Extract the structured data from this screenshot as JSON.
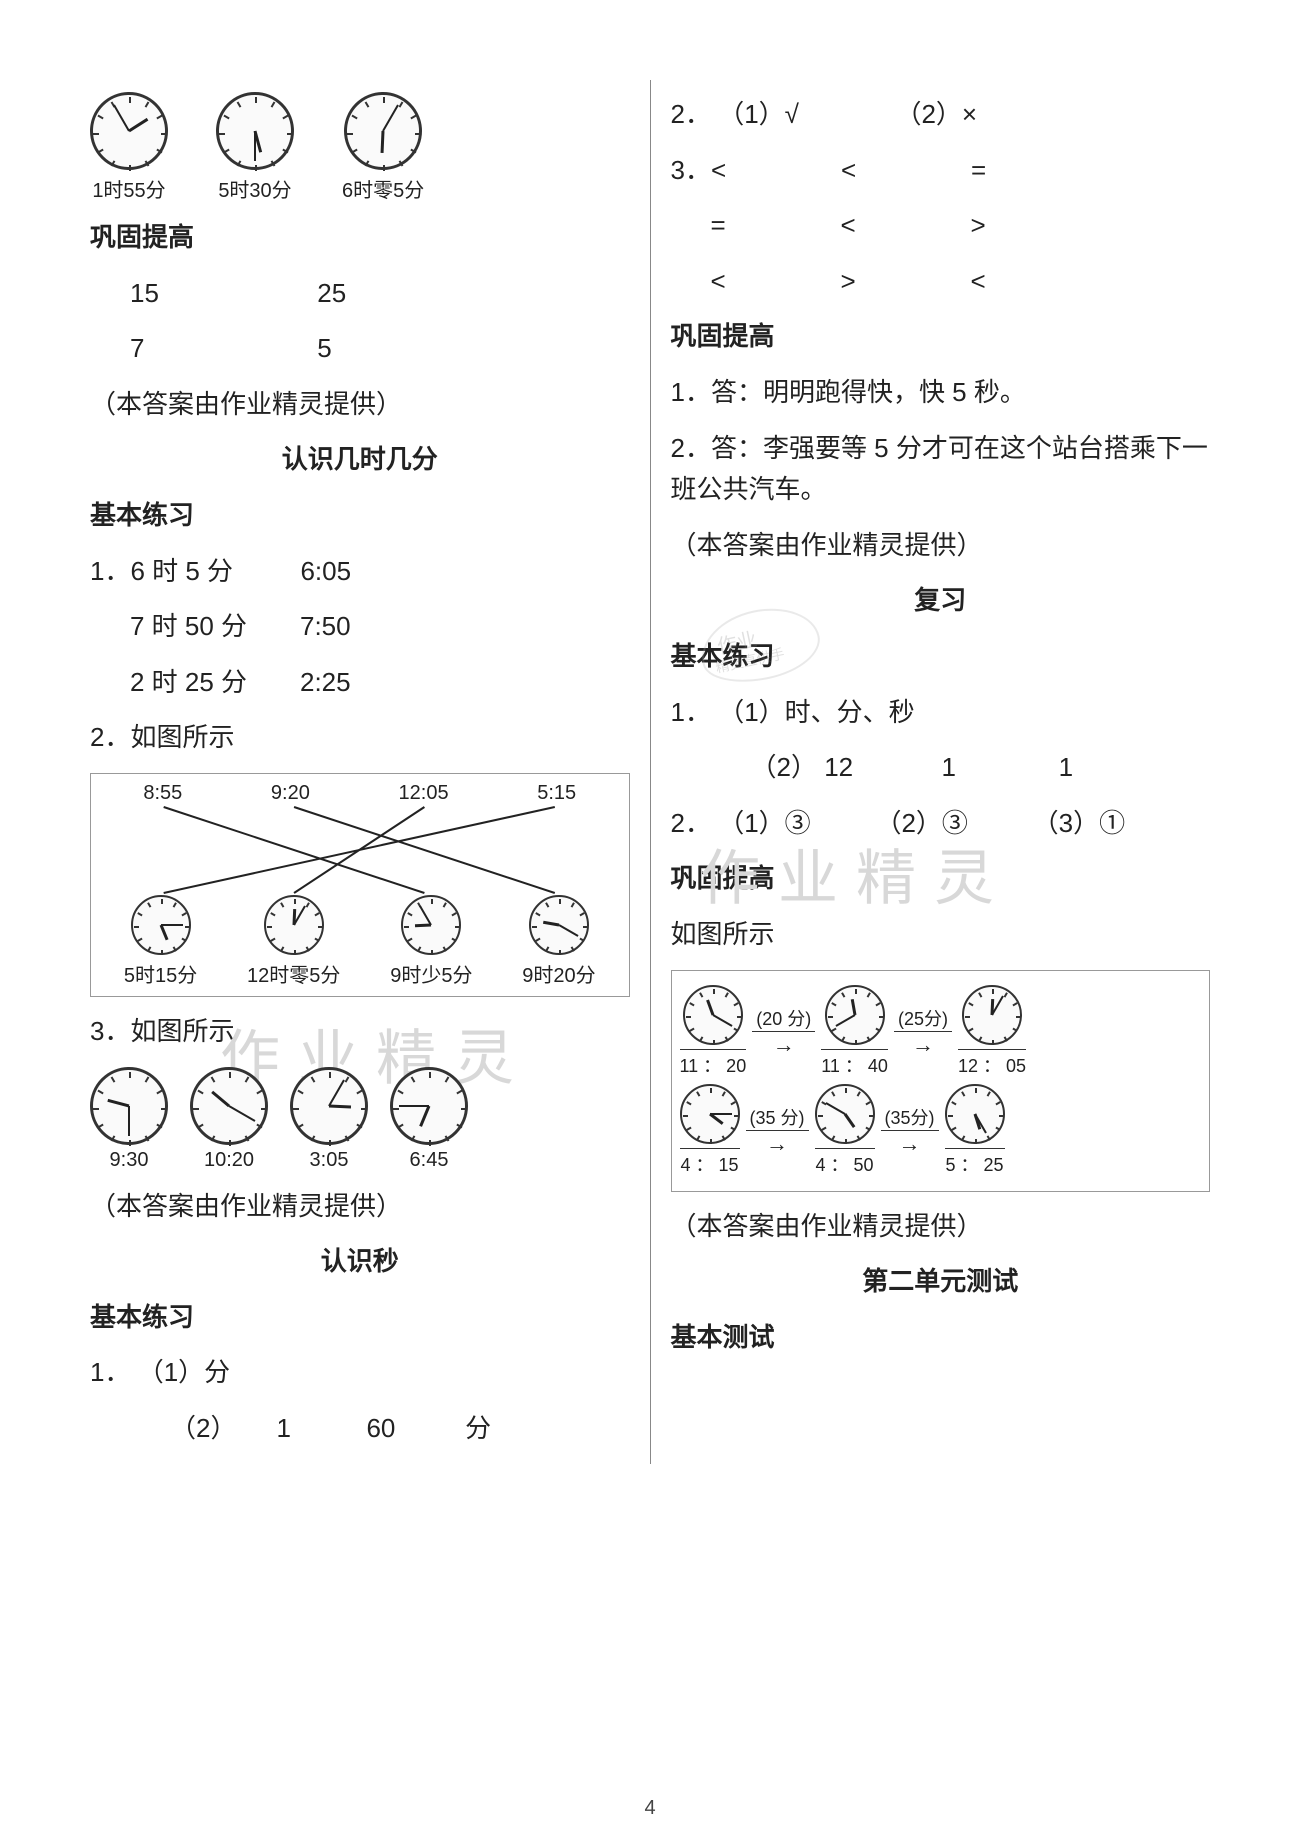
{
  "page_number": "4",
  "watermark_text": "作业精灵",
  "left": {
    "clocks_top": {
      "items": [
        {
          "hour": 1,
          "min": 55,
          "label": "1时55分"
        },
        {
          "hour": 5,
          "min": 30,
          "label": "5时30分"
        },
        {
          "hour": 6,
          "min": 5,
          "label": "6时零5分"
        }
      ]
    },
    "gonggu1_heading": "巩固提高",
    "gonggu1_row1": {
      "a": "15",
      "b": "25"
    },
    "gonggu1_row2": {
      "a": "7",
      "b": "5"
    },
    "credit1": "（本答案由作业精灵提供）",
    "title_renshi_jishijifen": "认识几时几分",
    "basic_heading": "基本练习",
    "q1": {
      "prefix": "1．",
      "rows": [
        {
          "cn": "6 时 5 分",
          "digital": "6:05"
        },
        {
          "cn": "7 时 50 分",
          "digital": "7:50"
        },
        {
          "cn": "2 时 25 分",
          "digital": "2:25"
        }
      ]
    },
    "q2_label": "2．如图所示",
    "match": {
      "top_labels": [
        "8:55",
        "9:20",
        "12:05",
        "5:15"
      ],
      "bottom": [
        {
          "hour": 5,
          "min": 15,
          "label": "5时15分"
        },
        {
          "hour": 12,
          "min": 5,
          "label": "12时零5分"
        },
        {
          "hour": 8,
          "min": 55,
          "cross": true,
          "label": "9时少5分"
        },
        {
          "hour": 9,
          "min": 20,
          "label": "9时20分"
        }
      ],
      "connections": [
        {
          "from": 0,
          "to": 2
        },
        {
          "from": 1,
          "to": 3
        },
        {
          "from": 2,
          "to": 1
        },
        {
          "from": 3,
          "to": 0
        }
      ]
    },
    "q3_label": "3．如图所示",
    "q3_clocks": [
      {
        "hour": 9,
        "min": 30,
        "label": "9:30"
      },
      {
        "hour": 10,
        "min": 20,
        "label": "10:20"
      },
      {
        "hour": 3,
        "min": 5,
        "label": "3:05"
      },
      {
        "hour": 6,
        "min": 45,
        "label": "6:45"
      }
    ],
    "credit2": "（本答案由作业精灵提供）",
    "title_renshimiao": "认识秒",
    "basic_heading2": "基本练习",
    "sec_q1_prefix": "1．",
    "sec_q1_a": "（1）分",
    "sec_q1_b": {
      "prefix": "（2）",
      "v1": "1",
      "v2": "60",
      "v3": "分"
    }
  },
  "right": {
    "q2": {
      "prefix": "2．",
      "a": "（1）√",
      "b": "（2）×"
    },
    "q3": {
      "prefix": "3．",
      "rows": [
        [
          "<",
          "<",
          "="
        ],
        [
          "=",
          "<",
          ">"
        ],
        [
          "<",
          ">",
          "<"
        ]
      ]
    },
    "gonggu_heading": "巩固提高",
    "a1": "1．答：明明跑得快，快 5 秒。",
    "a2": "2．答：李强要等 5 分才可在这个站台搭乘下一班公共汽车。",
    "credit1": "（本答案由作业精灵提供）",
    "title_fuxi": "复习",
    "basic_heading": "基本练习",
    "fx_q1_prefix": "1．",
    "fx_q1_a": "（1）时、分、秒",
    "fx_q1_b": {
      "prefix": "（2）",
      "v1": "12",
      "v2": "1",
      "v3": "1"
    },
    "fx_q2": {
      "prefix": "2．",
      "a": "（1）③",
      "b": "（2）③",
      "c": "（3）①"
    },
    "gonggu_heading2": "巩固提高",
    "fig_label": "如图所示",
    "flow": {
      "row1": {
        "start": {
          "hour": 11,
          "min": 20,
          "under": "11 ： 20"
        },
        "seg1": {
          "dur": "(20 分)",
          "hour": 11,
          "min": 40,
          "under": "11 ： 40"
        },
        "seg2": {
          "dur": "(25分)",
          "hour": 12,
          "min": 5,
          "under": "12 ： 05"
        }
      },
      "row2": {
        "start": {
          "hour": 4,
          "min": 15,
          "under": "4 ： 15"
        },
        "seg1": {
          "dur": "(35 分)",
          "hour": 4,
          "min": 50,
          "under": "4 ： 50"
        },
        "seg2": {
          "dur": "(35分)",
          "hour": 5,
          "min": 25,
          "under": "5 ： 25"
        }
      }
    },
    "credit2": "（本答案由作业精灵提供）",
    "title_unit2": "第二单元测试",
    "basic_test_heading": "基本测试"
  },
  "colors": {
    "text": "#222222",
    "divider": "#888888",
    "clock_border": "#333333",
    "watermark": "#d8d8d8",
    "box_border": "#999999"
  }
}
